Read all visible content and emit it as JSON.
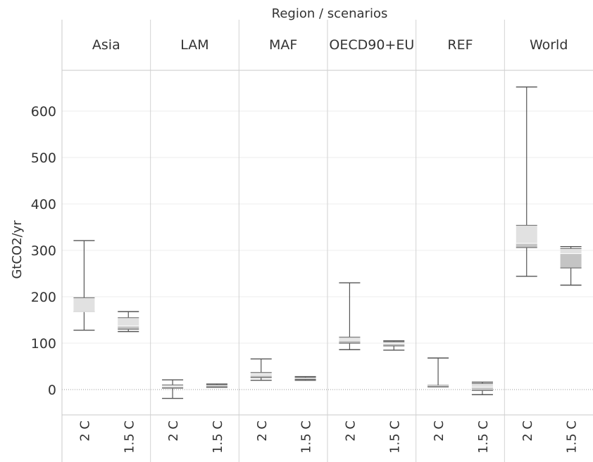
{
  "chart_data": {
    "type": "boxplot",
    "title": "Region / scenarios",
    "ylabel": "GtCO2/yr",
    "xlabel": "",
    "ylim": [
      -60,
      690
    ],
    "yticks": [
      0,
      100,
      200,
      300,
      400,
      500,
      600
    ],
    "grid": true,
    "zero_line": true,
    "regions": [
      "Asia",
      "LAM",
      "MAF",
      "OECD90+EU",
      "REF",
      "World"
    ],
    "scenarios": [
      "2 C",
      "1.5 C"
    ],
    "box_colors": {
      "2 C": "#dcdcdc",
      "1.5 C": "#cfcfcf"
    },
    "boxes": [
      {
        "region": "Asia",
        "scenario": "2 C",
        "min": 128,
        "q1": 168,
        "median": 168,
        "q3": 198,
        "max": 321
      },
      {
        "region": "Asia",
        "scenario": "1.5 C",
        "min": 125,
        "q1": 130,
        "median": 137,
        "q3": 155,
        "max": 168
      },
      {
        "region": "LAM",
        "scenario": "2 C",
        "min": -19,
        "q1": 3,
        "median": 7,
        "q3": 10,
        "max": 21
      },
      {
        "region": "LAM",
        "scenario": "1.5 C",
        "min": 5,
        "q1": 6,
        "median": 8,
        "q3": 10,
        "max": 12
      },
      {
        "region": "MAF",
        "scenario": "2 C",
        "min": 20,
        "q1": 26,
        "median": 31,
        "q3": 37,
        "max": 66
      },
      {
        "region": "MAF",
        "scenario": "1.5 C",
        "min": 20,
        "q1": 22,
        "median": 24,
        "q3": 26,
        "max": 28
      },
      {
        "region": "OECD90+EU",
        "scenario": "2 C",
        "min": 86,
        "q1": 100,
        "median": 106,
        "q3": 113,
        "max": 230
      },
      {
        "region": "OECD90+EU",
        "scenario": "1.5 C",
        "min": 85,
        "q1": 94,
        "median": 99,
        "q3": 103,
        "max": 105
      },
      {
        "region": "REF",
        "scenario": "2 C",
        "min": 6,
        "q1": 7,
        "median": 8,
        "q3": 9,
        "max": 68
      },
      {
        "region": "REF",
        "scenario": "1.5 C",
        "min": -11,
        "q1": -2,
        "median": 5,
        "q3": 13,
        "max": 16
      },
      {
        "region": "World",
        "scenario": "2 C",
        "min": 244,
        "q1": 306,
        "median": 315,
        "q3": 354,
        "max": 652
      },
      {
        "region": "World",
        "scenario": "1.5 C",
        "min": 225,
        "q1": 262,
        "median": 293,
        "q3": 304,
        "max": 308
      }
    ]
  }
}
